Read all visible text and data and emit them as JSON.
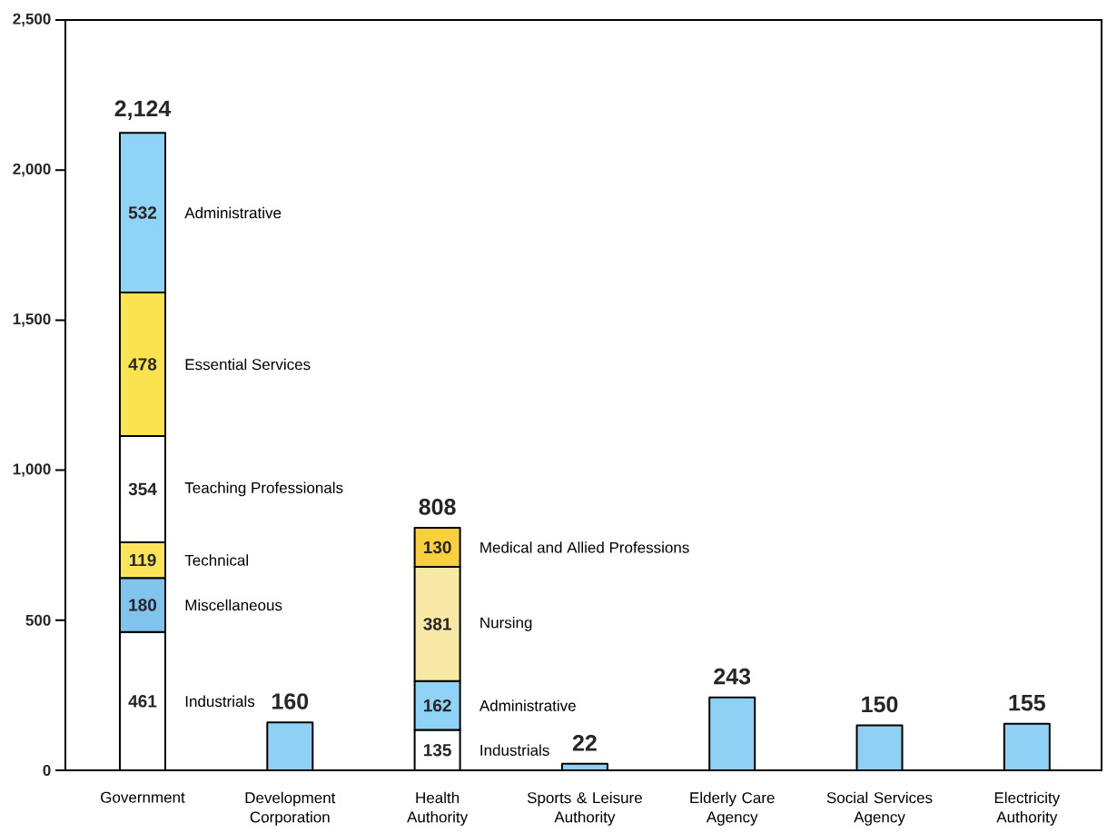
{
  "chart_data": {
    "type": "bar",
    "stacked": true,
    "categories": [
      "Government",
      "Development\nCorporation",
      "Health\nAuthority",
      "Sports & Leisure\nAuthority",
      "Elderly Care\nAgency",
      "Social Services\nAgency",
      "Electricity\nAuthority"
    ],
    "series": [
      {
        "color": "#8fd0f5",
        "values": [
          null,
          160,
          null,
          22,
          243,
          150,
          155
        ]
      },
      {
        "name": "Industrials",
        "color": "#ffffff",
        "values": [
          461,
          null,
          135,
          null,
          null,
          null,
          null
        ],
        "value_labels": [
          "461",
          null,
          "135",
          null,
          null,
          null,
          null
        ]
      },
      {
        "name": "Miscellaneous",
        "color": "#80c4ee",
        "values": [
          180,
          null,
          null,
          null,
          null,
          null,
          null
        ],
        "value_labels": [
          "180",
          null,
          null,
          null,
          null,
          null,
          null
        ]
      },
      {
        "name": "Technical",
        "color": "#fce55a",
        "values": [
          119,
          null,
          null,
          null,
          null,
          null,
          null
        ],
        "value_labels": [
          "119",
          null,
          null,
          null,
          null,
          null,
          null
        ]
      },
      {
        "name": "Teaching Professionals",
        "color": "#ffffff",
        "values": [
          354,
          null,
          null,
          null,
          null,
          null,
          null
        ],
        "value_labels": [
          "354",
          null,
          null,
          null,
          null,
          null,
          null
        ]
      },
      {
        "name": "Essential Services",
        "color": "#f9e34e",
        "values": [
          478,
          null,
          null,
          null,
          null,
          null,
          null
        ],
        "value_labels": [
          "478",
          null,
          null,
          null,
          null,
          null,
          null
        ]
      },
      {
        "name": "Administrative",
        "color": "#8fd3f7",
        "values": [
          532,
          null,
          162,
          null,
          null,
          null,
          null
        ],
        "value_labels": [
          "532",
          null,
          "162",
          null,
          null,
          null,
          null
        ]
      },
      {
        "name": "Nursing",
        "color": "#f8e9a6",
        "values": [
          null,
          null,
          381,
          null,
          null,
          null,
          null
        ],
        "value_labels": [
          null,
          null,
          "381",
          null,
          null,
          null,
          null
        ]
      },
      {
        "name": "Medical and Allied Professions",
        "color": "#f8cf3c",
        "values": [
          null,
          null,
          130,
          null,
          null,
          null,
          null
        ],
        "value_labels": [
          null,
          null,
          "130",
          null,
          null,
          null,
          null
        ]
      }
    ],
    "totals": [
      "2,124",
      "160",
      "808",
      "22",
      "243",
      "150",
      "155"
    ],
    "ylim": [
      0,
      2500
    ],
    "yticks": [
      0,
      500,
      {
        "value": 1000,
        "label": "1,000"
      },
      {
        "value": 1500,
        "label": "1,500"
      },
      {
        "value": 2000,
        "label": "2,000"
      },
      {
        "value": 2500,
        "label": "2,500"
      }
    ]
  }
}
